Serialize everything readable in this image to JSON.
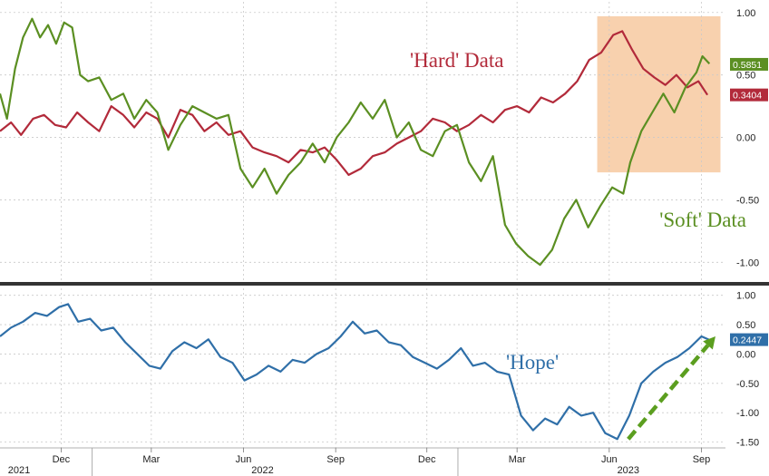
{
  "chart_data": [
    {
      "type": "line",
      "panel": "top",
      "x_axis": "date",
      "ylim": [
        -1.15,
        1.1
      ],
      "yticks": [
        "1.00",
        "0.50",
        "0.00",
        "-0.50",
        "-1.00"
      ],
      "ytick_values": [
        1.0,
        0.5,
        0.0,
        -0.5,
        -1.0
      ],
      "grid": true,
      "highlight": {
        "start": "2023-05-20",
        "end": "2023-09-20",
        "ymin": -0.28,
        "ymax": 0.97,
        "color": "#f7c9a0"
      },
      "series": [
        {
          "name": "'Hard' Data",
          "color": "#b22a3a",
          "last_value_label": "0.3404",
          "points": [
            [
              "2021-10-01",
              0.05
            ],
            [
              "2021-10-12",
              0.12
            ],
            [
              "2021-10-22",
              0.02
            ],
            [
              "2021-11-03",
              0.15
            ],
            [
              "2021-11-14",
              0.18
            ],
            [
              "2021-11-25",
              0.1
            ],
            [
              "2021-12-06",
              0.08
            ],
            [
              "2021-12-17",
              0.2
            ],
            [
              "2021-12-28",
              0.12
            ],
            [
              "2022-01-08",
              0.05
            ],
            [
              "2022-01-20",
              0.25
            ],
            [
              "2022-02-01",
              0.18
            ],
            [
              "2022-02-12",
              0.08
            ],
            [
              "2022-02-24",
              0.2
            ],
            [
              "2022-03-07",
              0.15
            ],
            [
              "2022-03-18",
              0.0
            ],
            [
              "2022-03-30",
              0.22
            ],
            [
              "2022-04-11",
              0.18
            ],
            [
              "2022-04-23",
              0.05
            ],
            [
              "2022-05-05",
              0.12
            ],
            [
              "2022-05-17",
              0.02
            ],
            [
              "2022-05-29",
              0.05
            ],
            [
              "2022-06-10",
              -0.08
            ],
            [
              "2022-06-22",
              -0.12
            ],
            [
              "2022-07-04",
              -0.15
            ],
            [
              "2022-07-16",
              -0.2
            ],
            [
              "2022-07-28",
              -0.1
            ],
            [
              "2022-08-09",
              -0.12
            ],
            [
              "2022-08-21",
              -0.08
            ],
            [
              "2022-09-02",
              -0.18
            ],
            [
              "2022-09-14",
              -0.3
            ],
            [
              "2022-09-26",
              -0.25
            ],
            [
              "2022-10-08",
              -0.15
            ],
            [
              "2022-10-20",
              -0.12
            ],
            [
              "2022-11-01",
              -0.05
            ],
            [
              "2022-11-13",
              0.0
            ],
            [
              "2022-11-25",
              0.05
            ],
            [
              "2022-12-07",
              0.15
            ],
            [
              "2022-12-19",
              0.12
            ],
            [
              "2022-12-31",
              0.05
            ],
            [
              "2023-01-12",
              0.1
            ],
            [
              "2023-01-24",
              0.18
            ],
            [
              "2023-02-05",
              0.12
            ],
            [
              "2023-02-17",
              0.22
            ],
            [
              "2023-03-01",
              0.25
            ],
            [
              "2023-03-13",
              0.2
            ],
            [
              "2023-03-25",
              0.32
            ],
            [
              "2023-04-06",
              0.28
            ],
            [
              "2023-04-18",
              0.35
            ],
            [
              "2023-04-30",
              0.45
            ],
            [
              "2023-05-12",
              0.62
            ],
            [
              "2023-05-24",
              0.68
            ],
            [
              "2023-06-05",
              0.82
            ],
            [
              "2023-06-14",
              0.85
            ],
            [
              "2023-06-24",
              0.7
            ],
            [
              "2023-07-05",
              0.55
            ],
            [
              "2023-07-16",
              0.48
            ],
            [
              "2023-07-27",
              0.42
            ],
            [
              "2023-08-07",
              0.5
            ],
            [
              "2023-08-18",
              0.4
            ],
            [
              "2023-08-29",
              0.45
            ],
            [
              "2023-09-07",
              0.34
            ]
          ]
        },
        {
          "name": "'Soft' Data",
          "color": "#5b8f22",
          "last_value_label": "0.5851",
          "points": [
            [
              "2021-10-01",
              0.35
            ],
            [
              "2021-10-08",
              0.15
            ],
            [
              "2021-10-16",
              0.55
            ],
            [
              "2021-10-24",
              0.8
            ],
            [
              "2021-11-02",
              0.95
            ],
            [
              "2021-11-10",
              0.8
            ],
            [
              "2021-11-18",
              0.9
            ],
            [
              "2021-11-26",
              0.75
            ],
            [
              "2021-12-04",
              0.92
            ],
            [
              "2021-12-12",
              0.88
            ],
            [
              "2021-12-20",
              0.5
            ],
            [
              "2021-12-28",
              0.45
            ],
            [
              "2022-01-08",
              0.48
            ],
            [
              "2022-01-20",
              0.3
            ],
            [
              "2022-02-01",
              0.35
            ],
            [
              "2022-02-12",
              0.15
            ],
            [
              "2022-02-24",
              0.3
            ],
            [
              "2022-03-07",
              0.2
            ],
            [
              "2022-03-18",
              -0.1
            ],
            [
              "2022-03-30",
              0.1
            ],
            [
              "2022-04-11",
              0.25
            ],
            [
              "2022-04-23",
              0.2
            ],
            [
              "2022-05-05",
              0.15
            ],
            [
              "2022-05-17",
              0.18
            ],
            [
              "2022-05-29",
              -0.25
            ],
            [
              "2022-06-10",
              -0.4
            ],
            [
              "2022-06-22",
              -0.25
            ],
            [
              "2022-07-04",
              -0.45
            ],
            [
              "2022-07-16",
              -0.3
            ],
            [
              "2022-07-28",
              -0.2
            ],
            [
              "2022-08-09",
              -0.05
            ],
            [
              "2022-08-21",
              -0.2
            ],
            [
              "2022-09-02",
              0.0
            ],
            [
              "2022-09-14",
              0.12
            ],
            [
              "2022-09-26",
              0.28
            ],
            [
              "2022-10-08",
              0.15
            ],
            [
              "2022-10-20",
              0.3
            ],
            [
              "2022-11-01",
              0.0
            ],
            [
              "2022-11-13",
              0.12
            ],
            [
              "2022-11-25",
              -0.1
            ],
            [
              "2022-12-07",
              -0.15
            ],
            [
              "2022-12-19",
              0.05
            ],
            [
              "2022-12-31",
              0.1
            ],
            [
              "2023-01-12",
              -0.2
            ],
            [
              "2023-01-24",
              -0.35
            ],
            [
              "2023-02-05",
              -0.15
            ],
            [
              "2023-02-17",
              -0.7
            ],
            [
              "2023-02-28",
              -0.85
            ],
            [
              "2023-03-12",
              -0.95
            ],
            [
              "2023-03-24",
              -1.02
            ],
            [
              "2023-04-05",
              -0.9
            ],
            [
              "2023-04-17",
              -0.65
            ],
            [
              "2023-04-29",
              -0.5
            ],
            [
              "2023-05-11",
              -0.72
            ],
            [
              "2023-05-23",
              -0.55
            ],
            [
              "2023-06-04",
              -0.4
            ],
            [
              "2023-06-15",
              -0.45
            ],
            [
              "2023-06-22",
              -0.2
            ],
            [
              "2023-07-03",
              0.05
            ],
            [
              "2023-07-14",
              0.2
            ],
            [
              "2023-07-25",
              0.35
            ],
            [
              "2023-08-05",
              0.2
            ],
            [
              "2023-08-16",
              0.4
            ],
            [
              "2023-08-27",
              0.52
            ],
            [
              "2023-09-02",
              0.65
            ],
            [
              "2023-09-09",
              0.59
            ]
          ]
        }
      ],
      "annotations": [
        {
          "text": "'Hard' Data",
          "color": "#b22a3a"
        },
        {
          "text": "'Soft' Data",
          "color": "#5b8f22"
        }
      ]
    },
    {
      "type": "line",
      "panel": "bottom",
      "x_axis": "date",
      "ylim": [
        -1.6,
        1.15
      ],
      "yticks": [
        "1.00",
        "0.50",
        "0.00",
        "-0.50",
        "-1.00",
        "-1.50"
      ],
      "ytick_values": [
        1.0,
        0.5,
        0.0,
        -0.5,
        -1.0,
        -1.5
      ],
      "grid": true,
      "series": [
        {
          "name": "'Hope'",
          "color": "#2f6fa8",
          "last_value_label": "0.2447",
          "points": [
            [
              "2021-10-01",
              0.3
            ],
            [
              "2021-10-12",
              0.45
            ],
            [
              "2021-10-24",
              0.55
            ],
            [
              "2021-11-05",
              0.7
            ],
            [
              "2021-11-17",
              0.65
            ],
            [
              "2021-11-29",
              0.8
            ],
            [
              "2021-12-08",
              0.85
            ],
            [
              "2021-12-18",
              0.55
            ],
            [
              "2021-12-30",
              0.6
            ],
            [
              "2022-01-10",
              0.4
            ],
            [
              "2022-01-22",
              0.45
            ],
            [
              "2022-02-03",
              0.2
            ],
            [
              "2022-02-15",
              0.0
            ],
            [
              "2022-02-27",
              -0.2
            ],
            [
              "2022-03-10",
              -0.25
            ],
            [
              "2022-03-22",
              0.05
            ],
            [
              "2022-04-03",
              0.2
            ],
            [
              "2022-04-15",
              0.1
            ],
            [
              "2022-04-27",
              0.25
            ],
            [
              "2022-05-09",
              -0.05
            ],
            [
              "2022-05-21",
              -0.15
            ],
            [
              "2022-06-02",
              -0.45
            ],
            [
              "2022-06-14",
              -0.35
            ],
            [
              "2022-06-26",
              -0.2
            ],
            [
              "2022-07-08",
              -0.3
            ],
            [
              "2022-07-20",
              -0.1
            ],
            [
              "2022-08-01",
              -0.15
            ],
            [
              "2022-08-13",
              0.0
            ],
            [
              "2022-08-25",
              0.1
            ],
            [
              "2022-09-06",
              0.3
            ],
            [
              "2022-09-18",
              0.55
            ],
            [
              "2022-09-30",
              0.35
            ],
            [
              "2022-10-12",
              0.4
            ],
            [
              "2022-10-24",
              0.2
            ],
            [
              "2022-11-05",
              0.15
            ],
            [
              "2022-11-17",
              -0.05
            ],
            [
              "2022-11-29",
              -0.15
            ],
            [
              "2022-12-11",
              -0.25
            ],
            [
              "2022-12-23",
              -0.1
            ],
            [
              "2023-01-04",
              0.1
            ],
            [
              "2023-01-16",
              -0.2
            ],
            [
              "2023-01-28",
              -0.15
            ],
            [
              "2023-02-09",
              -0.3
            ],
            [
              "2023-02-21",
              -0.35
            ],
            [
              "2023-03-05",
              -1.05
            ],
            [
              "2023-03-17",
              -1.3
            ],
            [
              "2023-03-29",
              -1.1
            ],
            [
              "2023-04-10",
              -1.2
            ],
            [
              "2023-04-22",
              -0.9
            ],
            [
              "2023-05-04",
              -1.05
            ],
            [
              "2023-05-16",
              -1.0
            ],
            [
              "2023-05-28",
              -1.35
            ],
            [
              "2023-06-09",
              -1.45
            ],
            [
              "2023-06-21",
              -1.05
            ],
            [
              "2023-07-03",
              -0.5
            ],
            [
              "2023-07-15",
              -0.3
            ],
            [
              "2023-07-27",
              -0.15
            ],
            [
              "2023-08-08",
              -0.05
            ],
            [
              "2023-08-20",
              0.1
            ],
            [
              "2023-09-01",
              0.3
            ],
            [
              "2023-09-09",
              0.24
            ]
          ]
        }
      ],
      "annotations": [
        {
          "text": "'Hope'",
          "color": "#2f6fa8"
        }
      ],
      "arrow": {
        "from": [
          "2023-06-20",
          -1.45
        ],
        "to": [
          "2023-09-15",
          0.3
        ],
        "color": "#5b9e1f",
        "style": "dashed"
      }
    }
  ],
  "x_axis": {
    "months": [
      {
        "label": "Dec",
        "date": "2021-12-01"
      },
      {
        "label": "Mar",
        "date": "2022-03-01"
      },
      {
        "label": "Jun",
        "date": "2022-06-01"
      },
      {
        "label": "Sep",
        "date": "2022-09-01"
      },
      {
        "label": "Dec",
        "date": "2022-12-01"
      },
      {
        "label": "Mar",
        "date": "2023-03-01"
      },
      {
        "label": "Jun",
        "date": "2023-06-01"
      },
      {
        "label": "Sep",
        "date": "2023-09-01"
      }
    ],
    "years": [
      {
        "label": "2021",
        "date": "2021-10-20"
      },
      {
        "label": "2022",
        "date": "2022-06-20"
      },
      {
        "label": "2023",
        "date": "2023-06-20"
      }
    ],
    "year_boundaries": [
      "2022-01-01",
      "2023-01-01"
    ],
    "start": "2021-10-01",
    "end": "2023-09-25"
  }
}
